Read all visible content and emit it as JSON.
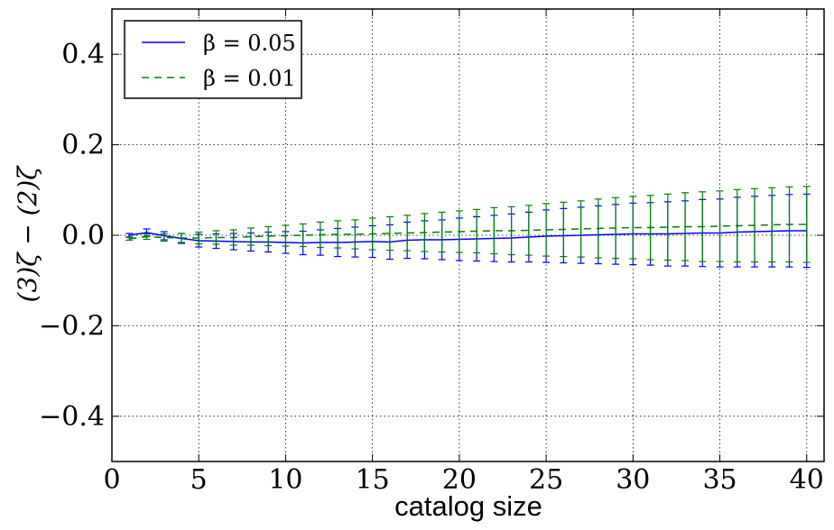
{
  "chart_data": {
    "type": "line",
    "title": "",
    "xlabel": "catalog size",
    "ylabel": "(3)ζ − (2)ζ",
    "xlim": [
      0,
      41
    ],
    "ylim": [
      -0.5,
      0.5
    ],
    "xticks": [
      0,
      5,
      10,
      15,
      20,
      25,
      30,
      35,
      40
    ],
    "yticks": [
      -0.4,
      -0.2,
      0.0,
      0.2,
      0.4
    ],
    "xtick_labels": [
      "0",
      "5",
      "10",
      "15",
      "20",
      "25",
      "30",
      "35",
      "40"
    ],
    "ytick_labels": [
      "−0.4",
      "−0.2",
      "0.0",
      "0.2",
      "0.4"
    ],
    "grid": true,
    "legend_position": "top-left",
    "series": [
      {
        "name": "β = 0.05",
        "color": "#0000ff",
        "dash": "solid",
        "x": [
          1,
          2,
          3,
          4,
          5,
          6,
          7,
          8,
          9,
          10,
          11,
          12,
          13,
          14,
          15,
          16,
          17,
          18,
          19,
          20,
          21,
          22,
          23,
          24,
          25,
          26,
          27,
          28,
          29,
          30,
          31,
          32,
          33,
          34,
          35,
          36,
          37,
          38,
          39,
          40
        ],
        "values": [
          0.0,
          0.006,
          -0.001,
          -0.007,
          -0.012,
          -0.013,
          -0.014,
          -0.015,
          -0.015,
          -0.016,
          -0.017,
          -0.016,
          -0.016,
          -0.015,
          -0.014,
          -0.015,
          -0.011,
          -0.01,
          -0.01,
          -0.009,
          -0.008,
          -0.007,
          -0.006,
          -0.004,
          -0.002,
          -0.001,
          0.0,
          0.001,
          0.002,
          0.003,
          0.003,
          0.003,
          0.004,
          0.005,
          0.005,
          0.007,
          0.008,
          0.009,
          0.01,
          0.01
        ],
        "errors": [
          0.004,
          0.008,
          0.009,
          0.011,
          0.014,
          0.016,
          0.018,
          0.02,
          0.022,
          0.024,
          0.026,
          0.028,
          0.031,
          0.033,
          0.035,
          0.038,
          0.04,
          0.042,
          0.044,
          0.047,
          0.049,
          0.051,
          0.053,
          0.055,
          0.058,
          0.06,
          0.062,
          0.064,
          0.066,
          0.068,
          0.069,
          0.071,
          0.072,
          0.074,
          0.075,
          0.077,
          0.078,
          0.079,
          0.08,
          0.081
        ]
      },
      {
        "name": "β = 0.01",
        "color": "#008000",
        "dash": "dashed",
        "x": [
          1,
          2,
          3,
          4,
          5,
          6,
          7,
          8,
          9,
          10,
          11,
          12,
          13,
          14,
          15,
          16,
          17,
          18,
          19,
          20,
          21,
          22,
          23,
          24,
          25,
          26,
          27,
          28,
          29,
          30,
          31,
          32,
          33,
          34,
          35,
          36,
          37,
          38,
          39,
          40
        ],
        "values": [
          -0.008,
          -0.003,
          -0.005,
          -0.006,
          -0.006,
          -0.005,
          -0.005,
          -0.003,
          -0.002,
          -0.001,
          0.0,
          0.001,
          0.002,
          0.002,
          0.003,
          0.004,
          0.005,
          0.006,
          0.007,
          0.008,
          0.009,
          0.01,
          0.01,
          0.011,
          0.012,
          0.013,
          0.014,
          0.015,
          0.016,
          0.017,
          0.017,
          0.018,
          0.019,
          0.019,
          0.02,
          0.021,
          0.022,
          0.023,
          0.024,
          0.024
        ],
        "errors": [
          0.003,
          0.006,
          0.008,
          0.01,
          0.013,
          0.015,
          0.017,
          0.019,
          0.021,
          0.023,
          0.025,
          0.028,
          0.03,
          0.032,
          0.035,
          0.037,
          0.039,
          0.042,
          0.044,
          0.046,
          0.048,
          0.051,
          0.053,
          0.055,
          0.058,
          0.06,
          0.062,
          0.065,
          0.067,
          0.069,
          0.071,
          0.073,
          0.075,
          0.077,
          0.078,
          0.08,
          0.081,
          0.082,
          0.083,
          0.084
        ]
      }
    ]
  }
}
